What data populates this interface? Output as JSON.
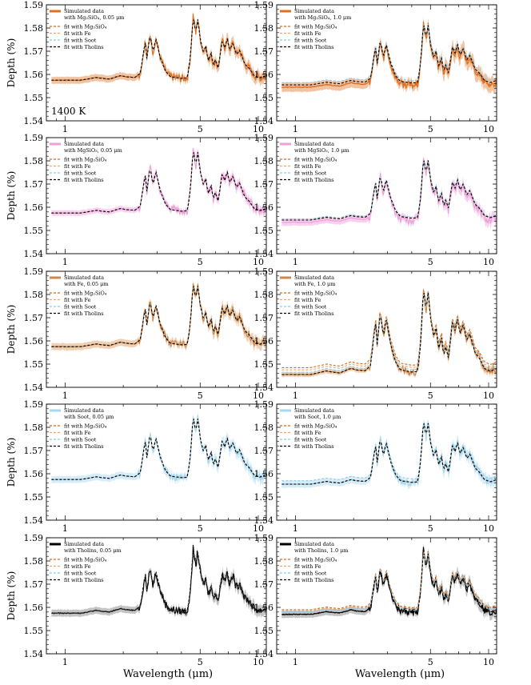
{
  "figure": {
    "ylabel": "Depth (%)",
    "xlabel": "Wavelength (μm)",
    "temperature_label": "1400 K"
  },
  "colors": {
    "sim_Mg2SiO4": "#e07020",
    "sim_MgSiO3": "#f0a0d8",
    "sim_Fe": "#d08848",
    "sim_Soot": "#a8d8f0",
    "sim_Tholins": "#000000",
    "fit_Mg2SiO4": "#d2691e",
    "fit_Fe": "#f4a460",
    "fit_Soot": "#87ceeb",
    "fit_Tholins": "#000000"
  },
  "chart_data": [
    {
      "type": "line",
      "row": 0,
      "col": 0,
      "species": "Mg2SiO4",
      "legend_title": [
        "Simulated data",
        "with Mg₂SiO₄, 0.05 μm"
      ],
      "baseline": 1.5575,
      "fit_offsets": [
        0,
        0,
        0,
        0
      ],
      "band": 0.0015,
      "xlim": [
        0.8,
        11
      ],
      "ylim": [
        1.54,
        1.59
      ],
      "xticks": [
        1,
        5,
        10
      ],
      "yticks": [
        1.54,
        1.55,
        1.56,
        1.57,
        1.58,
        1.59
      ],
      "ytick_labels": [
        "1.54",
        "1.55",
        "1.56",
        "1.57",
        "1.58",
        "1.59"
      ],
      "legend": [
        "fit with Mg₂SiO₄",
        "fit with Fe",
        "fit with Soot",
        "fit with Tholins"
      ]
    },
    {
      "type": "line",
      "row": 0,
      "col": 1,
      "species": "Mg2SiO4",
      "legend_title": [
        "Simulated data",
        "with Mg₂SiO₄, 1.0 μm"
      ],
      "baseline": 1.5545,
      "fit_offsets": [
        0,
        0.001,
        0.002,
        0.001
      ],
      "band": 0.002,
      "xlim": [
        0.8,
        11
      ],
      "ylim": [
        1.54,
        1.59
      ],
      "xticks": [
        1,
        5,
        10
      ],
      "yticks": [
        1.54,
        1.55,
        1.56,
        1.57,
        1.58,
        1.59
      ],
      "ytick_labels": [
        "1.54",
        "1.55",
        "1.56",
        "1.57",
        "1.58",
        "1.59"
      ],
      "legend": [
        "fit with Mg₂SiO₄",
        "fit with Fe",
        "fit with Soot",
        "fit with Tholins"
      ]
    },
    {
      "type": "line",
      "row": 1,
      "col": 0,
      "species": "MgSiO3",
      "legend_title": [
        "Simulated data",
        "with MgSiO₃, 0.05 μm"
      ],
      "baseline": 1.5575,
      "fit_offsets": [
        0,
        0,
        0,
        0
      ],
      "band": 0.0012,
      "xlim": [
        0.8,
        11
      ],
      "ylim": [
        1.54,
        1.59
      ],
      "xticks": [
        1,
        5,
        10
      ],
      "yticks": [
        1.54,
        1.55,
        1.56,
        1.57,
        1.58,
        1.59
      ],
      "ytick_labels": [
        "1.54",
        "1.55",
        "1.56",
        "1.57",
        "1.58",
        "1.59"
      ],
      "legend": [
        "fit with Mg₂SiO₄",
        "fit with Fe",
        "fit with Soot",
        "fit with Tholins"
      ]
    },
    {
      "type": "line",
      "row": 1,
      "col": 1,
      "species": "MgSiO3",
      "legend_title": [
        "Simulated data",
        "with MgSiO₃, 1.0 μm"
      ],
      "baseline": 1.5535,
      "fit_offsets": [
        0.001,
        0.001,
        0.0015,
        0.001
      ],
      "band": 0.0015,
      "xlim": [
        0.8,
        11
      ],
      "ylim": [
        1.54,
        1.59
      ],
      "xticks": [
        1,
        5,
        10
      ],
      "yticks": [
        1.54,
        1.55,
        1.56,
        1.57,
        1.58,
        1.59
      ],
      "ytick_labels": [
        "1.54",
        "1.55",
        "1.56",
        "1.57",
        "1.58",
        "1.59"
      ],
      "legend": [
        "fit with Mg₂SiO₄",
        "fit with Fe",
        "fit with Soot",
        "fit with Tholins"
      ]
    },
    {
      "type": "line",
      "row": 2,
      "col": 0,
      "species": "Fe",
      "legend_title": [
        "Simulated data",
        "with Fe, 0.05 μm"
      ],
      "baseline": 1.5575,
      "fit_offsets": [
        0,
        0,
        0,
        0
      ],
      "band": 0.0015,
      "xlim": [
        0.8,
        11
      ],
      "ylim": [
        1.54,
        1.59
      ],
      "xticks": [
        1,
        5,
        10
      ],
      "yticks": [
        1.54,
        1.55,
        1.56,
        1.57,
        1.58,
        1.59
      ],
      "ytick_labels": [
        "1.54",
        "1.55",
        "1.56",
        "1.57",
        "1.58",
        "1.59"
      ],
      "legend": [
        "fit with Mg₂SiO₄",
        "fit with Fe",
        "fit with Soot",
        "fit with Tholins"
      ]
    },
    {
      "type": "line",
      "row": 2,
      "col": 1,
      "species": "Fe",
      "legend_title": [
        "Simulated data",
        "with Fe, 1.0 μm"
      ],
      "baseline": 1.5455,
      "fit_offsets": [
        0.003,
        0.002,
        0.001,
        0
      ],
      "band": 0.001,
      "xlim": [
        0.8,
        11
      ],
      "ylim": [
        1.54,
        1.59
      ],
      "xticks": [
        1,
        5,
        10
      ],
      "yticks": [
        1.54,
        1.55,
        1.56,
        1.57,
        1.58,
        1.59
      ],
      "ytick_labels": [
        "1.54",
        "1.55",
        "1.56",
        "1.57",
        "1.58",
        "1.59"
      ],
      "legend": [
        "fit with Mg₂SiO₄",
        "fit with Fe",
        "fit with Soot",
        "fit with Tholins"
      ]
    },
    {
      "type": "line",
      "row": 3,
      "col": 0,
      "species": "Soot",
      "legend_title": [
        "Simulated data",
        "with Soot, 0.05 μm"
      ],
      "baseline": 1.5575,
      "fit_offsets": [
        0,
        0,
        0,
        0
      ],
      "band": 0.0015,
      "xlim": [
        0.8,
        11
      ],
      "ylim": [
        1.54,
        1.59
      ],
      "xticks": [
        1,
        5,
        10
      ],
      "yticks": [
        1.54,
        1.55,
        1.56,
        1.57,
        1.58,
        1.59
      ],
      "ytick_labels": [
        "1.54",
        "1.55",
        "1.56",
        "1.57",
        "1.58",
        "1.59"
      ],
      "legend": [
        "fit with Mg₂SiO₄",
        "fit with Fe",
        "fit with Soot",
        "fit with Tholins"
      ]
    },
    {
      "type": "line",
      "row": 3,
      "col": 1,
      "species": "Soot",
      "legend_title": [
        "Simulated data",
        "with Soot, 1.0 μm"
      ],
      "baseline": 1.5555,
      "fit_offsets": [
        0,
        0,
        0.0015,
        0
      ],
      "band": 0.0015,
      "xlim": [
        0.8,
        11
      ],
      "ylim": [
        1.54,
        1.59
      ],
      "xticks": [
        1,
        5,
        10
      ],
      "yticks": [
        1.54,
        1.55,
        1.56,
        1.57,
        1.58,
        1.59
      ],
      "ytick_labels": [
        "1.54",
        "1.55",
        "1.56",
        "1.57",
        "1.58",
        "1.59"
      ],
      "legend": [
        "fit with Mg₂SiO₄",
        "fit with Fe",
        "fit with Soot",
        "fit with Tholins"
      ]
    },
    {
      "type": "line",
      "row": 4,
      "col": 0,
      "species": "Tholins",
      "legend_title": [
        "Simulated data",
        "with Tholins, 0.05 μm"
      ],
      "baseline": 1.5575,
      "fit_offsets": [
        0,
        0,
        0,
        0
      ],
      "band": 0.0015,
      "xlim": [
        0.8,
        11
      ],
      "ylim": [
        1.54,
        1.59
      ],
      "xticks": [
        1,
        5,
        10
      ],
      "yticks": [
        1.54,
        1.55,
        1.56,
        1.57,
        1.58,
        1.59
      ],
      "ytick_labels": [
        "1.54",
        "1.55",
        "1.56",
        "1.57",
        "1.58",
        "1.59"
      ],
      "legend": [
        "fit with Mg₂SiO₄",
        "fit with Fe",
        "fit with Soot",
        "fit with Tholins"
      ]
    },
    {
      "type": "line",
      "row": 4,
      "col": 1,
      "species": "Tholins",
      "legend_title": [
        "Simulated data",
        "with Tholins, 1.0 μm"
      ],
      "baseline": 1.557,
      "fit_offsets": [
        0.002,
        0.0015,
        0.001,
        0
      ],
      "band": 0.0015,
      "xlim": [
        0.8,
        11
      ],
      "ylim": [
        1.54,
        1.59
      ],
      "xticks": [
        1,
        5,
        10
      ],
      "yticks": [
        1.54,
        1.55,
        1.56,
        1.57,
        1.58,
        1.59
      ],
      "ytick_labels": [
        "1.54",
        "1.55",
        "1.56",
        "1.57",
        "1.58",
        "1.59"
      ],
      "legend": [
        "fit with Mg₂SiO₄",
        "fit with Fe",
        "fit with Soot",
        "fit with Tholins"
      ]
    }
  ],
  "spectrum_shape": [
    [
      0.85,
      0
    ],
    [
      1.2,
      0
    ],
    [
      1.3,
      0.0005
    ],
    [
      1.45,
      0.0012
    ],
    [
      1.55,
      0.0008
    ],
    [
      1.7,
      0.0005
    ],
    [
      1.85,
      0.0015
    ],
    [
      1.95,
      0.002
    ],
    [
      2.05,
      0.0015
    ],
    [
      2.3,
      0.0012
    ],
    [
      2.45,
      0.003
    ],
    [
      2.6,
      0.017
    ],
    [
      2.65,
      0.009
    ],
    [
      2.75,
      0.02
    ],
    [
      2.85,
      0.012
    ],
    [
      2.95,
      0.018
    ],
    [
      3.1,
      0.01
    ],
    [
      3.3,
      0.004
    ],
    [
      3.5,
      0.0015
    ],
    [
      4.0,
      0.0008
    ],
    [
      4.3,
      0.001
    ],
    [
      4.45,
      0.01
    ],
    [
      4.6,
      0.028
    ],
    [
      4.75,
      0.02
    ],
    [
      4.85,
      0.027
    ],
    [
      5.0,
      0.018
    ],
    [
      5.2,
      0.012
    ],
    [
      5.35,
      0.015
    ],
    [
      5.5,
      0.008
    ],
    [
      5.7,
      0.012
    ],
    [
      5.85,
      0.006
    ],
    [
      6.0,
      0.009
    ],
    [
      6.2,
      0.005
    ],
    [
      6.5,
      0.017
    ],
    [
      6.7,
      0.014
    ],
    [
      6.9,
      0.018
    ],
    [
      7.1,
      0.013
    ],
    [
      7.4,
      0.016
    ],
    [
      7.7,
      0.011
    ],
    [
      8.0,
      0.013
    ],
    [
      8.5,
      0.007
    ],
    [
      9.0,
      0.005
    ],
    [
      9.5,
      0.002
    ],
    [
      10.2,
      0.001
    ],
    [
      11,
      0.002
    ]
  ]
}
